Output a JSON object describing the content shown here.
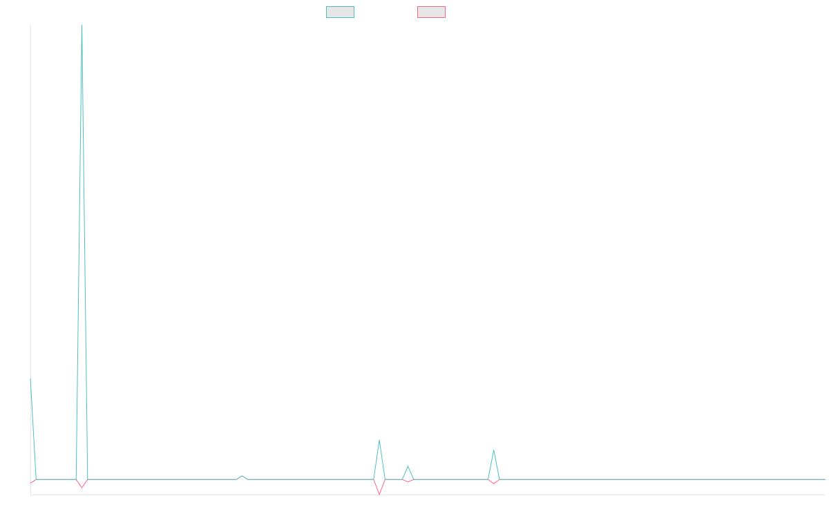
{
  "chart_data": {
    "type": "line",
    "categories": [
      null,
      null,
      null,
      null,
      null,
      null,
      null,
      null,
      null,
      null,
      null,
      null,
      null,
      null,
      null,
      null,
      null,
      null,
      null,
      null,
      null,
      null,
      null,
      null,
      null,
      null,
      null,
      null,
      null,
      null,
      null,
      null,
      null,
      null,
      null,
      null,
      null,
      null,
      null,
      null,
      null,
      null,
      null,
      null,
      null,
      null,
      null,
      null,
      null,
      null,
      null,
      null,
      null,
      null,
      null,
      null,
      null,
      null,
      null,
      null,
      null,
      null,
      null,
      null,
      null,
      null,
      null,
      null,
      null,
      null,
      null,
      null,
      null,
      null,
      null,
      null,
      null,
      null,
      null,
      null,
      null,
      null,
      null,
      null,
      null,
      null,
      null,
      null,
      null,
      null,
      null,
      null,
      null,
      null,
      null,
      null,
      null,
      null,
      null,
      null,
      null,
      null,
      null,
      null,
      null,
      null,
      null,
      null,
      null,
      null,
      null,
      null,
      null,
      null,
      null,
      null,
      null,
      null,
      null,
      null,
      null,
      null,
      null,
      null,
      null,
      null,
      null,
      null,
      null,
      null,
      null,
      null,
      null,
      null,
      null,
      null,
      null,
      null,
      null,
      null
    ],
    "series": [
      {
        "color": "#4bc0c0",
        "values": [
          22.2,
          0,
          0,
          0,
          0,
          0,
          0,
          0,
          0,
          100,
          0,
          0,
          0,
          0,
          0,
          0,
          0,
          0,
          0,
          0,
          0,
          0,
          0,
          0,
          0,
          0,
          0,
          0,
          0,
          0,
          0,
          0,
          0,
          0,
          0,
          0,
          0,
          0.8,
          0,
          0,
          0,
          0,
          0,
          0,
          0,
          0,
          0,
          0,
          0,
          0,
          0,
          0,
          0,
          0,
          0,
          0,
          0,
          0,
          0,
          0,
          0,
          8.7,
          0,
          0,
          0,
          0,
          2.9,
          0,
          0,
          0,
          0,
          0,
          0,
          0,
          0,
          0,
          0,
          0,
          0,
          0,
          0,
          6.5,
          0,
          0,
          0,
          0,
          0,
          0,
          0,
          0,
          0,
          0,
          0,
          0,
          0,
          0,
          0,
          0,
          0,
          0,
          0,
          0,
          0,
          0,
          0,
          0,
          0,
          0,
          0,
          0,
          0,
          0,
          0,
          0,
          0,
          0,
          0,
          0,
          0,
          0,
          0,
          0,
          0,
          0,
          0,
          0,
          0,
          0,
          0,
          0,
          0,
          0,
          0,
          0,
          0,
          0,
          0,
          0,
          0,
          0
        ]
      },
      {
        "color": "#ff6384",
        "values": [
          -0.8,
          0,
          0,
          0,
          0,
          0,
          0,
          0,
          0,
          -1.8,
          0,
          0,
          0,
          0,
          0,
          0,
          0,
          0,
          0,
          0,
          0,
          0,
          0,
          0,
          0,
          0,
          0,
          0,
          0,
          0,
          0,
          0,
          0,
          0,
          0,
          0,
          0,
          0.8,
          0,
          0,
          0,
          0,
          0,
          0,
          0,
          0,
          0,
          0,
          0,
          0,
          0,
          0,
          0,
          0,
          0,
          0,
          0,
          0,
          0,
          0,
          0,
          -3.3,
          0,
          0,
          0,
          0,
          -0.5,
          0,
          0,
          0,
          0,
          0,
          0,
          0,
          0,
          0,
          0,
          0,
          0,
          0,
          0,
          -0.9,
          0,
          0,
          0,
          0,
          0,
          0,
          0,
          0,
          0,
          0,
          0,
          0,
          0,
          0,
          0,
          0,
          0,
          0,
          0,
          0,
          0,
          0,
          0,
          0,
          0,
          0,
          0,
          0,
          0,
          0,
          0,
          0,
          0,
          0,
          0,
          0,
          0,
          0,
          0,
          0,
          0,
          0,
          0,
          0,
          0,
          0,
          0,
          0,
          0,
          0,
          0,
          0,
          0,
          0,
          0,
          0,
          0,
          0
        ]
      }
    ],
    "ylim": [
      -3.3,
      100
    ]
  }
}
